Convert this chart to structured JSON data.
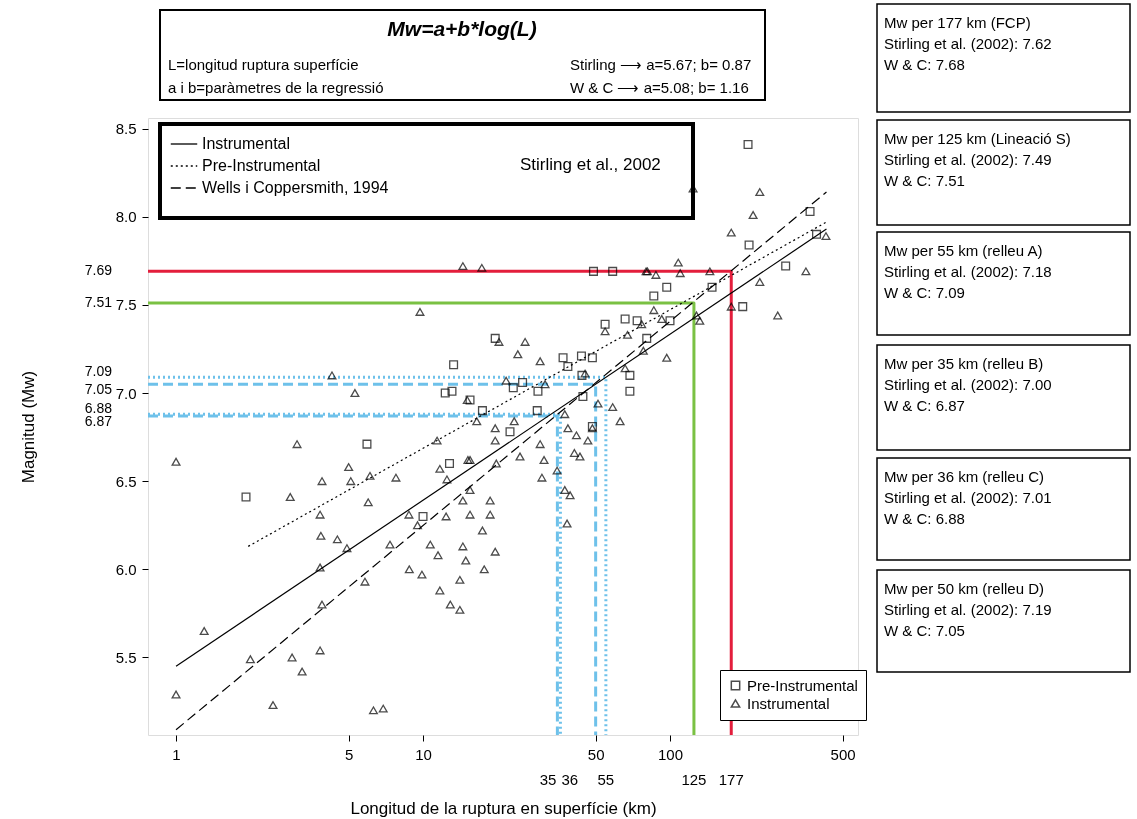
{
  "chart_data": {
    "type": "scatter",
    "title": "Mw=a+b*log(L)",
    "xlabel": "Longitud de la ruptura en superfície (km)",
    "ylabel": "Magnitud (Mw)",
    "log": "x",
    "xlim": [
      0.77,
      577
    ],
    "ylim": [
      5.06,
      8.56
    ],
    "xticks": [
      1,
      5,
      10,
      50,
      100,
      500
    ],
    "yticks": [
      5.5,
      {
        "value": 6,
        "label": "6.0"
      },
      6.5,
      {
        "value": 7,
        "label": "7.0"
      },
      7.5,
      {
        "value": 8,
        "label": "8.0"
      },
      8.5
    ],
    "grid": false,
    "legend": "top left",
    "series": [
      {
        "type": "line",
        "color": "#e31e3c",
        "line_style": "solid",
        "x": [
          0.77,
          177,
          177
        ],
        "values": [
          7.69,
          7.69,
          5.06
        ]
      },
      {
        "type": "line",
        "color": "#7ac143",
        "line_style": "solid",
        "x": [
          0.77,
          125,
          125
        ],
        "values": [
          7.51,
          7.51,
          5.06
        ]
      },
      {
        "type": "line",
        "color": "#6ec1ea",
        "line_style": "dotted",
        "x": [
          0.77,
          55,
          55
        ],
        "values": [
          7.09,
          7.09,
          5.06
        ]
      },
      {
        "type": "line",
        "color": "#6ec1ea",
        "line_style": "dashed",
        "x": [
          0.77,
          50,
          50
        ],
        "values": [
          7.05,
          7.05,
          5.06
        ]
      },
      {
        "type": "line",
        "color": "#6ec1ea",
        "line_style": "dotted",
        "x": [
          0.77,
          36,
          36
        ],
        "values": [
          6.88,
          6.88,
          5.06
        ]
      },
      {
        "type": "line",
        "color": "#6ec1ea",
        "line_style": "dashed",
        "x": [
          0.77,
          35,
          35
        ],
        "values": [
          6.87,
          6.87,
          5.06
        ]
      },
      {
        "type": "line",
        "name": "Instrumental",
        "color": "#000000",
        "line_style": "solid",
        "x": [
          1,
          430
        ],
        "values": [
          5.45,
          7.93
        ]
      },
      {
        "type": "line",
        "name": "Pre-Instrumental",
        "color": "#000000",
        "line_style": "dotted",
        "x": [
          1.96,
          430
        ],
        "values": [
          6.13,
          7.97
        ]
      },
      {
        "type": "line",
        "name": "Wells i Coppersmith, 1994",
        "color": "#000000",
        "line_style": "dashed",
        "x": [
          1,
          430
        ],
        "values": [
          5.09,
          8.14
        ]
      },
      {
        "type": "scatter",
        "name": "Pre-Instrumental",
        "color": "#000000",
        "marker": "square",
        "x": [
          1.92,
          5.93,
          10,
          13.3,
          12.3,
          13.1,
          19.6,
          15.5,
          17.4,
          12.8,
          22.5,
          23.2,
          25.3,
          29.2,
          29,
          36.9,
          43.8,
          48.5,
          44.4,
          48.5,
          38.6,
          44,
          54.6,
          207,
          369,
          392,
          209,
          294,
          148,
          197,
          97,
          86,
          58.6,
          49,
          100,
          68.8,
          68.8,
          65.8,
          73.6,
          80.5
        ],
        "values": [
          6.41,
          6.71,
          6.3,
          7.16,
          7.0,
          7.01,
          7.31,
          6.96,
          6.9,
          6.6,
          6.78,
          7.03,
          7.06,
          7.01,
          6.9,
          7.2,
          7.21,
          7.2,
          6.98,
          6.81,
          7.15,
          7.1,
          7.39,
          8.41,
          8.03,
          7.9,
          7.84,
          7.72,
          7.6,
          7.49,
          7.6,
          7.55,
          7.69,
          7.69,
          7.41,
          7.1,
          7.01,
          7.42,
          7.41,
          7.31
        ]
      },
      {
        "type": "scatter",
        "name": "Instrumental",
        "color": "#000000",
        "marker": "triangle",
        "x": [
          1.0,
          1.0,
          1.3,
          2.0,
          2.47,
          2.9,
          3.09,
          2.95,
          3.24,
          3.83,
          3.86,
          3.83,
          3.9,
          3.83,
          3.9,
          4.28,
          4.92,
          5.0,
          5.1,
          5.3,
          4.5,
          5.82,
          6.0,
          6.1,
          6.3,
          6.9,
          7.35,
          7.77,
          8.77,
          8.8,
          9.72,
          9.9,
          9.5,
          10.7,
          11.5,
          11.4,
          11.7,
          12.4,
          12.5,
          12.9,
          14.1,
          14.5,
          14.9,
          14.1,
          15.1,
          15.5,
          15.5,
          16.5,
          17.3,
          17.7,
          18.7,
          19.6,
          20.3,
          19.8,
          21.7,
          23.4,
          24.2,
          24.7,
          25.9,
          29.8,
          29.8,
          30.9,
          31.2,
          34.9,
          37.5,
          37.5,
          38.3,
          41,
          41.8,
          45.3,
          51.1,
          54.6,
          62.8,
          65.8,
          67.3,
          80,
          76.8,
          92.6,
          110,
          124,
          132,
          231,
          177,
          217,
          231,
          428,
          355,
          273,
          108,
          145,
          128,
          97,
          177,
          81,
          87.7,
          86,
          78,
          58.6,
          19.6,
          15.2,
          11.7,
          14.5,
          15.5,
          18.7,
          17.4,
          14.5,
          19.6,
          30.3,
          39.4,
          46.5,
          43.2,
          38.6,
          48.5
        ],
        "values": [
          6.61,
          5.29,
          5.65,
          5.49,
          5.23,
          6.41,
          6.71,
          5.5,
          5.42,
          6.31,
          6.19,
          6.01,
          5.8,
          5.54,
          6.5,
          7.1,
          6.12,
          6.58,
          6.5,
          7.0,
          6.17,
          5.93,
          6.38,
          6.53,
          5.2,
          5.21,
          6.14,
          6.52,
          6.31,
          6.0,
          7.46,
          5.97,
          6.25,
          6.14,
          6.08,
          6.73,
          5.88,
          6.3,
          6.51,
          5.8,
          5.77,
          7.72,
          6.05,
          5.94,
          6.96,
          6.62,
          6.45,
          6.84,
          7.71,
          6.0,
          6.39,
          6.73,
          7.29,
          6.6,
          7.07,
          6.84,
          7.22,
          6.64,
          7.29,
          7.18,
          6.71,
          6.62,
          7.05,
          6.56,
          6.88,
          6.45,
          6.26,
          6.66,
          6.76,
          7.11,
          6.94,
          7.35,
          6.84,
          7.14,
          7.33,
          7.69,
          7.39,
          7.42,
          7.68,
          8.16,
          7.41,
          7.63,
          7.91,
          8.01,
          8.14,
          7.89,
          7.69,
          7.44,
          7.74,
          7.69,
          7.44,
          7.2,
          7.49,
          7.69,
          7.67,
          7.47,
          7.24,
          6.92,
          6.8,
          6.62,
          6.57,
          6.39,
          6.31,
          6.31,
          6.22,
          6.13,
          6.1,
          6.52,
          6.42,
          6.73,
          6.64,
          6.8,
          6.8
        ]
      }
    ],
    "annotations": [
      "L=longitud ruptura superfície",
      "Stirling ⟶ a=5.67; b= 0.87",
      "a i b=paràmetres de la regressió",
      "W & C ⟶ a=5.08; b= 1.16",
      "Stirling et al., 2002",
      "Mw per 177 km (FCP)\nStirling et al. (2002): 7.62\nW & C: 7.68",
      "Mw per 125 km (Lineació S)\nStirling et al. (2002): 7.49\nW & C: 7.51",
      "Mw per 55 km (relleu A)\nStirling et al. (2002): 7.18\nW & C: 7.09",
      "Mw per 35 km (relleu B)\nStirling et al. (2002): 7.00\nW & C: 6.87",
      "Mw per 36 km (relleu C)\nStirling et al. (2002): 7.01\nW & C: 6.88",
      "Mw per 50 km (relleu D)\nStirling et al. (2002): 7.19\nW & C: 7.05",
      {
        "text": "35",
        "x": 35,
        "y": 5.06
      },
      {
        "text": "36",
        "x": 36,
        "y": 5.06
      },
      {
        "text": "55",
        "x": 55,
        "y": 5.06
      },
      {
        "text": "125",
        "x": 125,
        "y": 5.06
      },
      {
        "text": "177",
        "x": 177,
        "y": 5.06
      },
      {
        "text": "7.69",
        "x": 0.77,
        "y": 7.69
      },
      {
        "text": "7.51",
        "x": 0.77,
        "y": 7.51
      },
      {
        "text": "7.09",
        "x": 0.77,
        "y": 7.09
      },
      {
        "text": "7.05",
        "x": 0.77,
        "y": 7.05
      },
      {
        "text": "6.88",
        "x": 0.77,
        "y": 6.88
      },
      {
        "text": "6.87",
        "x": 0.77,
        "y": 6.87
      }
    ]
  }
}
